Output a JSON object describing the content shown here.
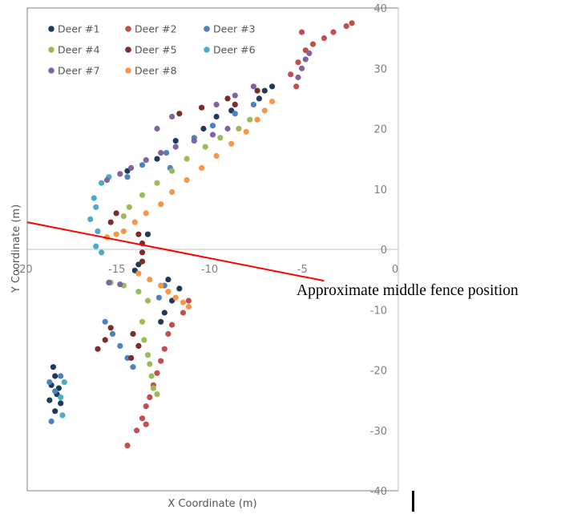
{
  "chart_data": {
    "type": "scatter",
    "title": "",
    "xlabel": "X Coordinate  (m)",
    "ylabel": "Y Coordinate (m)",
    "xlim": [
      -20,
      0
    ],
    "ylim": [
      -40,
      40
    ],
    "x_ticks": [
      "-20",
      "-15",
      "-10",
      "-5",
      "0"
    ],
    "y_ticks": [
      "40",
      "30",
      "20",
      "10",
      "0",
      "-10",
      "-20",
      "-30",
      "-40"
    ],
    "grid": false,
    "legend_position": "top-left, inside plot",
    "series": [
      {
        "name": "Deer #1",
        "color": "#1f3a5f",
        "points": [
          [
            -18.6,
            -19.5
          ],
          [
            -18.5,
            -21
          ],
          [
            -18.7,
            -22.5
          ],
          [
            -18.4,
            -24
          ],
          [
            -18.2,
            -25.5
          ],
          [
            -18.5,
            -26.8
          ],
          [
            -18.8,
            -25
          ],
          [
            -18.3,
            -23
          ],
          [
            -14.0,
            -2.5
          ],
          [
            -14.2,
            -3.5
          ],
          [
            -12.4,
            -5
          ],
          [
            -11.8,
            -6.5
          ],
          [
            -12.2,
            -8.5
          ],
          [
            -12.6,
            -10.5
          ],
          [
            -12.8,
            -12
          ],
          [
            -13.5,
            2.5
          ],
          [
            -14.6,
            13
          ],
          [
            -13.0,
            15
          ],
          [
            -12.0,
            18
          ],
          [
            -10.5,
            20
          ],
          [
            -9.0,
            23
          ],
          [
            -7.5,
            25
          ],
          [
            -6.8,
            27
          ],
          [
            -7.2,
            26.3
          ],
          [
            -9.8,
            22
          ]
        ]
      },
      {
        "name": "Deer #2",
        "color": "#c0504d",
        "points": [
          [
            -2.5,
            37.5
          ],
          [
            -2.8,
            37
          ],
          [
            -3.5,
            36
          ],
          [
            -4.0,
            35
          ],
          [
            -4.6,
            34
          ],
          [
            -5.0,
            33
          ],
          [
            -5.4,
            31
          ],
          [
            -5.8,
            29
          ],
          [
            -5.5,
            27
          ],
          [
            -5.2,
            36
          ],
          [
            -11.3,
            -8.5
          ],
          [
            -11.6,
            -10.5
          ],
          [
            -12.2,
            -12.5
          ],
          [
            -12.4,
            -14
          ],
          [
            -12.6,
            -16.5
          ],
          [
            -12.8,
            -18.5
          ],
          [
            -13.0,
            -20.5
          ],
          [
            -13.2,
            -22.5
          ],
          [
            -13.4,
            -24.5
          ],
          [
            -13.6,
            -26
          ],
          [
            -13.8,
            -28
          ],
          [
            -14.1,
            -30
          ],
          [
            -14.6,
            -32.5
          ],
          [
            -13.6,
            -29
          ]
        ]
      },
      {
        "name": "Deer #3",
        "color": "#4f81bd",
        "points": [
          [
            -18.8,
            -22
          ],
          [
            -18.5,
            -23.5
          ],
          [
            -18.7,
            -28.5
          ],
          [
            -18.2,
            -21
          ],
          [
            -15.8,
            -12
          ],
          [
            -15.4,
            -14
          ],
          [
            -15.0,
            -16
          ],
          [
            -14.6,
            -18
          ],
          [
            -14.3,
            -19.5
          ],
          [
            -12.6,
            -6
          ],
          [
            -12.9,
            -8
          ],
          [
            -14.6,
            12
          ],
          [
            -13.8,
            14
          ],
          [
            -12.5,
            16
          ],
          [
            -11.0,
            18.5
          ],
          [
            -10.0,
            20.5
          ],
          [
            -8.8,
            22.5
          ],
          [
            -7.8,
            24
          ],
          [
            -12.3,
            13.5
          ]
        ]
      },
      {
        "name": "Deer #4",
        "color": "#9bbb59",
        "points": [
          [
            -15.5,
            -5.5
          ],
          [
            -14.8,
            -6
          ],
          [
            -14.0,
            -7
          ],
          [
            -13.5,
            -8.5
          ],
          [
            -13.8,
            -12
          ],
          [
            -13.7,
            -15
          ],
          [
            -13.5,
            -17.5
          ],
          [
            -13.4,
            -19
          ],
          [
            -13.3,
            -21
          ],
          [
            -13.2,
            -23
          ],
          [
            -13.0,
            -24
          ],
          [
            -14.8,
            5.5
          ],
          [
            -14.5,
            7
          ],
          [
            -13.8,
            9
          ],
          [
            -13.0,
            11
          ],
          [
            -12.2,
            13
          ],
          [
            -11.4,
            15
          ],
          [
            -10.4,
            17
          ],
          [
            -9.6,
            18.5
          ],
          [
            -8.6,
            20
          ],
          [
            -8.0,
            21.5
          ]
        ]
      },
      {
        "name": "Deer #5",
        "color": "#7b2c2c",
        "points": [
          [
            -15.5,
            -13
          ],
          [
            -15.8,
            -15
          ],
          [
            -16.2,
            -16.5
          ],
          [
            -14.3,
            -14
          ],
          [
            -14.0,
            -16
          ],
          [
            -14.4,
            -18
          ],
          [
            -13.8,
            1
          ],
          [
            -13.8,
            -0.5
          ],
          [
            -13.8,
            -2
          ],
          [
            -14.0,
            2.5
          ],
          [
            -15.5,
            4.5
          ],
          [
            -15.2,
            6
          ],
          [
            -9.2,
            25
          ],
          [
            -8.8,
            24
          ],
          [
            -10.6,
            23.5
          ],
          [
            -11.8,
            22.5
          ],
          [
            -7.6,
            26.3
          ]
        ]
      },
      {
        "name": "Deer #6",
        "color": "#4bacc6",
        "points": [
          [
            -16.0,
            11
          ],
          [
            -15.6,
            12
          ],
          [
            -16.4,
            8.5
          ],
          [
            -16.3,
            7
          ],
          [
            -16.6,
            5
          ],
          [
            -16.2,
            3
          ],
          [
            -16.3,
            0.5
          ],
          [
            -16.0,
            -0.5
          ],
          [
            -18.2,
            -24.5
          ],
          [
            -18.0,
            -22
          ],
          [
            -18.1,
            -27.5
          ]
        ]
      },
      {
        "name": "Deer #7",
        "color": "#8064a2",
        "points": [
          [
            -15.7,
            11.5
          ],
          [
            -15.0,
            12.5
          ],
          [
            -14.4,
            13.5
          ],
          [
            -13.6,
            14.8
          ],
          [
            -12.8,
            16
          ],
          [
            -12.0,
            17
          ],
          [
            -11.0,
            18
          ],
          [
            -10.0,
            19
          ],
          [
            -9.2,
            20
          ],
          [
            -9.8,
            24
          ],
          [
            -8.8,
            25.5
          ],
          [
            -7.8,
            27
          ],
          [
            -5.4,
            28.5
          ],
          [
            -5.2,
            30
          ],
          [
            -5.0,
            31.5
          ],
          [
            -4.8,
            32.5
          ],
          [
            -13.0,
            20
          ],
          [
            -12.2,
            22
          ],
          [
            -15.6,
            -5.5
          ],
          [
            -15.0,
            -5.8
          ]
        ]
      },
      {
        "name": "Deer #8",
        "color": "#f79646",
        "points": [
          [
            -15.7,
            2
          ],
          [
            -15.2,
            2.5
          ],
          [
            -14.8,
            3
          ],
          [
            -14.2,
            4.5
          ],
          [
            -13.6,
            6
          ],
          [
            -12.8,
            7.5
          ],
          [
            -12.2,
            9.5
          ],
          [
            -11.4,
            11.5
          ],
          [
            -10.6,
            13.5
          ],
          [
            -9.8,
            15.5
          ],
          [
            -9.0,
            17.5
          ],
          [
            -8.2,
            19.5
          ],
          [
            -7.6,
            21.5
          ],
          [
            -7.2,
            23
          ],
          [
            -6.8,
            24.5
          ],
          [
            -14.0,
            -4
          ],
          [
            -13.4,
            -5
          ],
          [
            -12.8,
            -6
          ],
          [
            -12.4,
            -7
          ],
          [
            -12.0,
            -8
          ],
          [
            -11.6,
            -8.8
          ],
          [
            -11.3,
            -9.5
          ]
        ]
      }
    ],
    "annotations": [
      {
        "text": "Approximate middle fence position",
        "line": {
          "x": [
            -20,
            -4
          ],
          "y": [
            4.5,
            -5.2
          ]
        },
        "color": "#ff0000"
      }
    ]
  }
}
